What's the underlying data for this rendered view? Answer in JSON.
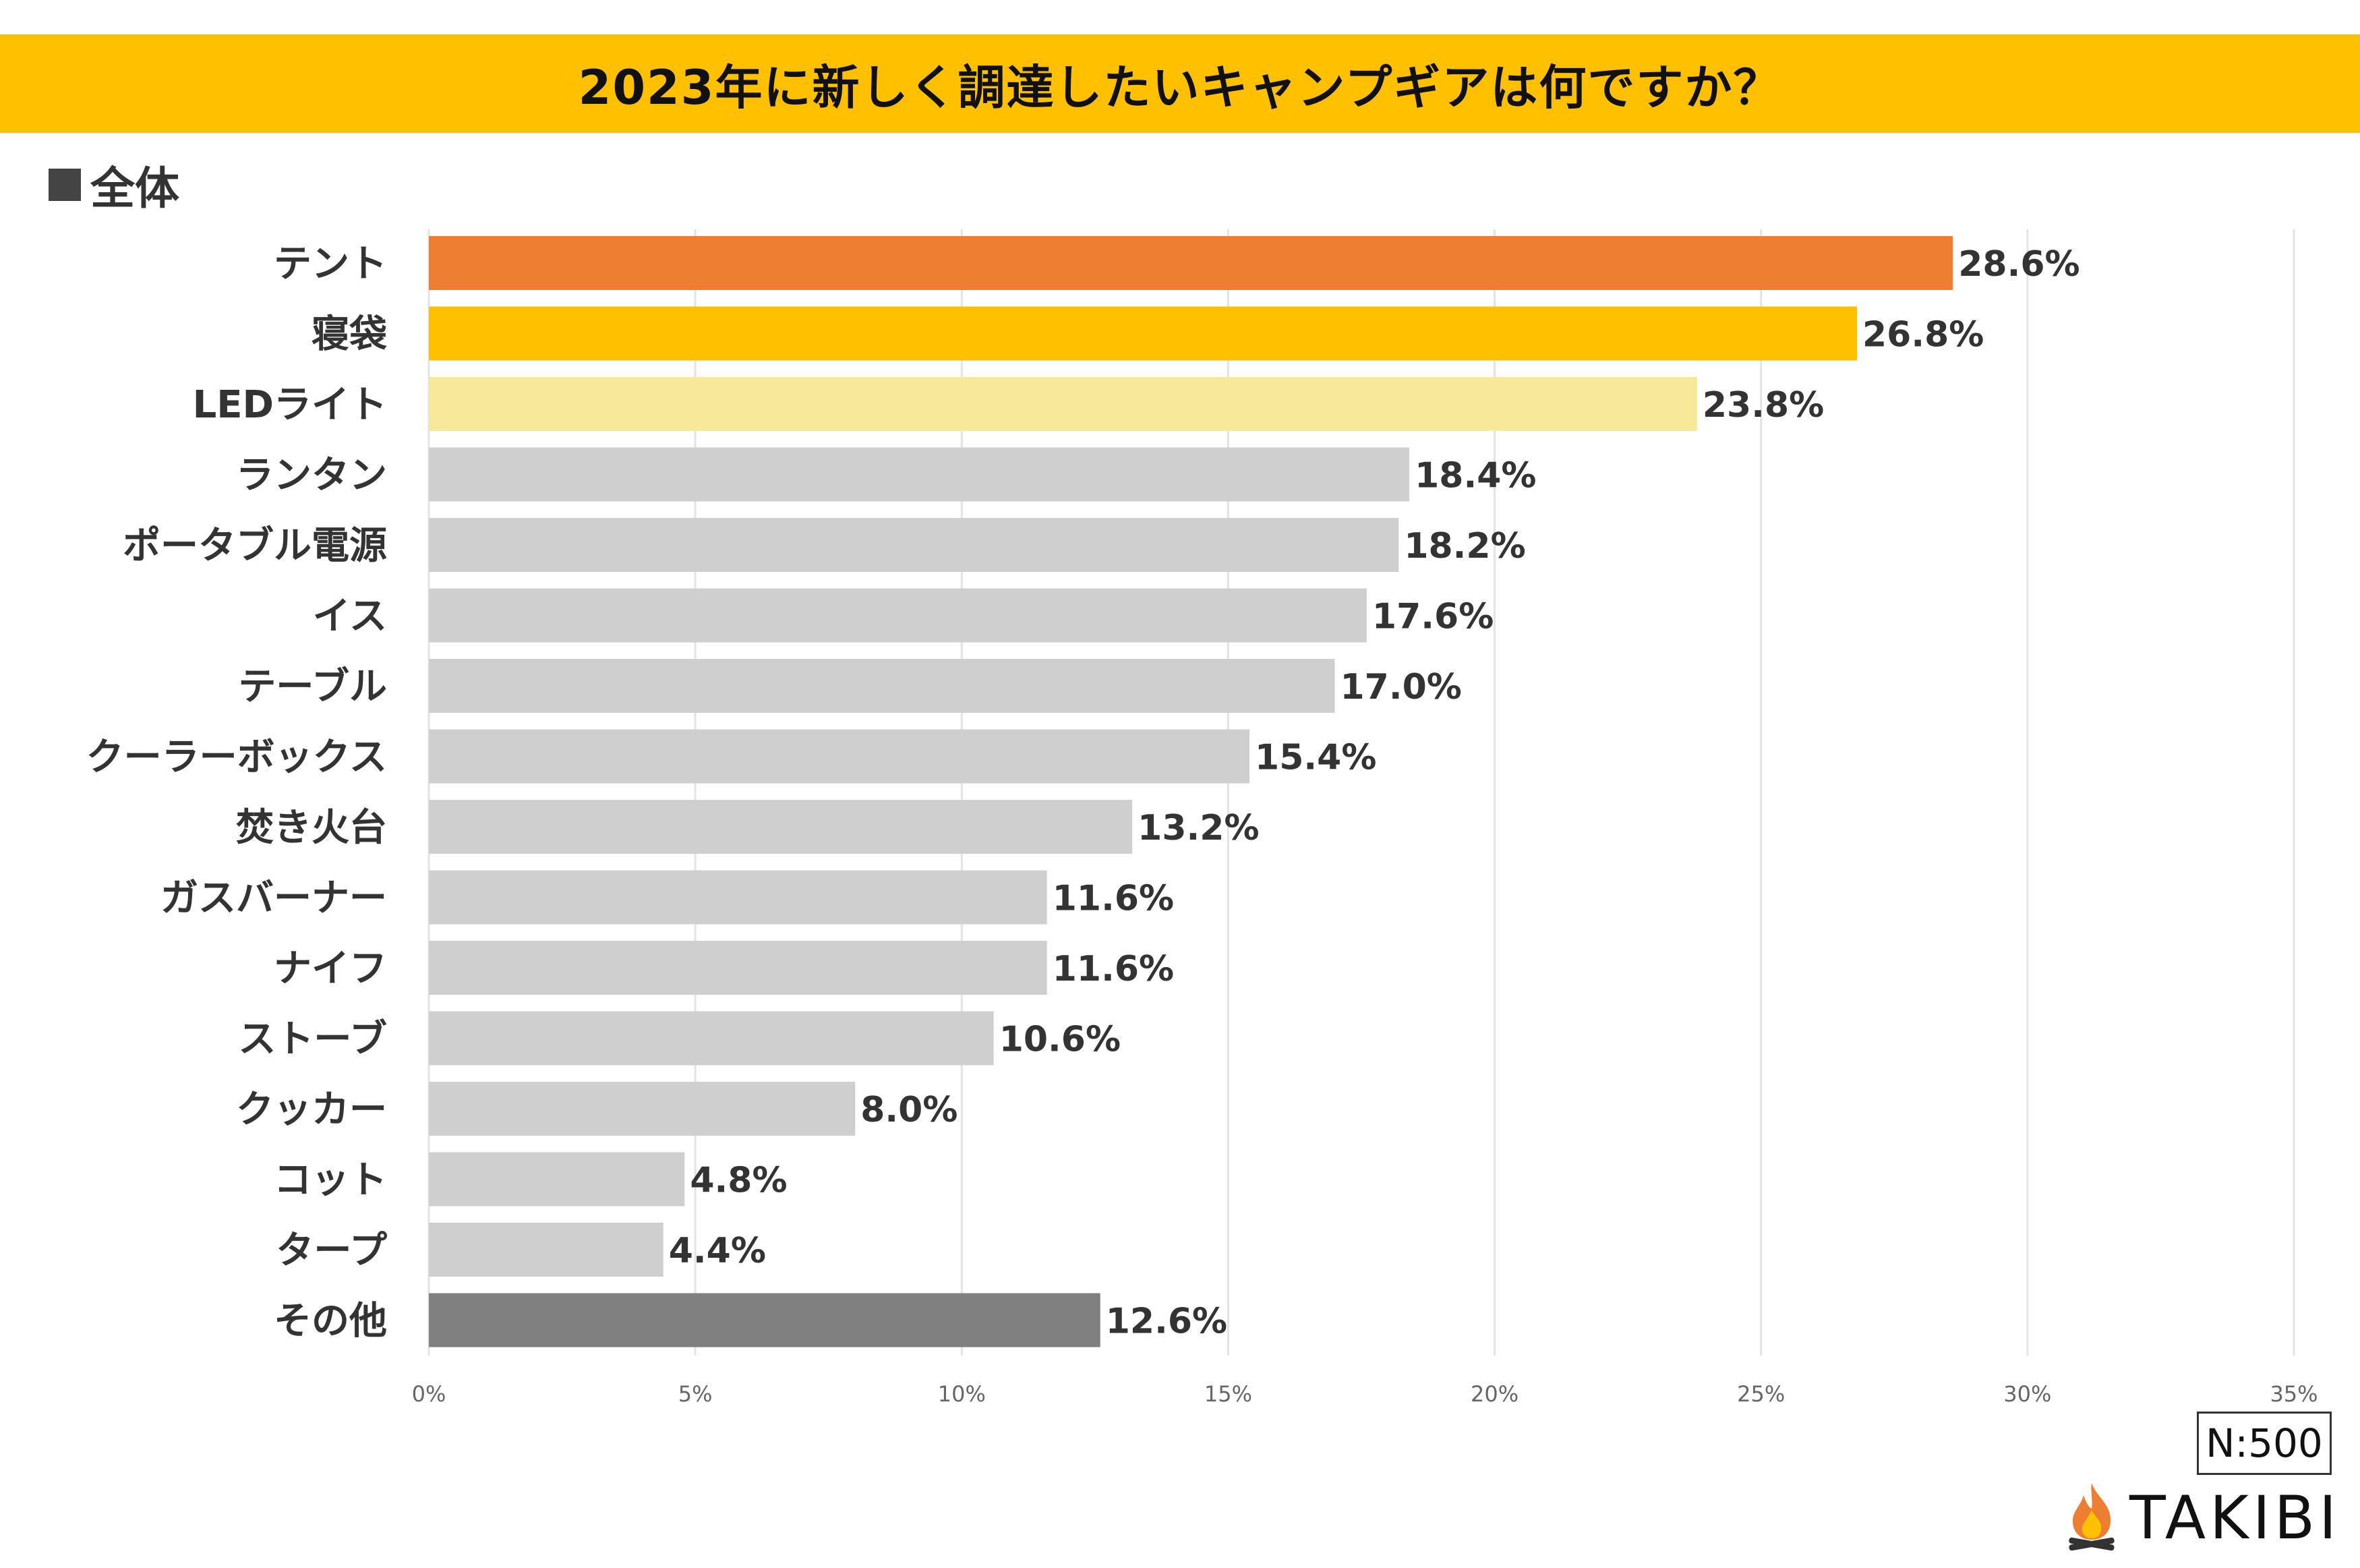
{
  "header": {
    "title": "2023年に新しく調達したいキャンプギアは何ですか？",
    "subtitle": "全体"
  },
  "footer": {
    "sample_size": "N:500",
    "brand": "TAKIBI"
  },
  "colors": {
    "banner": "#FFC000",
    "highlight1": "#ED7D31",
    "highlight2": "#FFC000",
    "highlight3": "#F7E99A",
    "default_bar": "#D0CFCF",
    "other_bar": "#808080",
    "highlight_label": "#ED7D31"
  },
  "chart_data": {
    "type": "bar",
    "orientation": "horizontal",
    "title": "2023年に新しく調達したいキャンプギアは何ですか？",
    "categories": [
      "テント",
      "寝袋",
      "LEDライト",
      "ランタン",
      "ポータブル電源",
      "イス",
      "テーブル",
      "クーラーボックス",
      "焚き火台",
      "ガスバーナー",
      "ナイフ",
      "ストーブ",
      "クッカー",
      "コット",
      "タープ",
      "その他"
    ],
    "values": [
      28.6,
      26.8,
      23.8,
      18.4,
      18.2,
      17.6,
      17.0,
      15.4,
      13.2,
      11.6,
      11.6,
      10.6,
      8.0,
      4.8,
      4.4,
      12.6
    ],
    "value_labels": [
      "28.6%",
      "26.8%",
      "23.8%",
      "18.4%",
      "18.2%",
      "17.6%",
      "17.0%",
      "15.4%",
      "13.2%",
      "11.6%",
      "11.6%",
      "10.6%",
      "8.0%",
      "4.8%",
      "4.4%",
      "12.6%"
    ],
    "bar_colors": [
      "#ED7D31",
      "#FFC000",
      "#F7E99A",
      "#D0CFCF",
      "#D0CFCF",
      "#D0CFCF",
      "#D0CFCF",
      "#D0CFCF",
      "#D0CFCF",
      "#D0CFCF",
      "#D0CFCF",
      "#D0CFCF",
      "#D0CFCF",
      "#D0CFCF",
      "#D0CFCF",
      "#808080"
    ],
    "xlim": [
      0,
      35
    ],
    "xticks": [
      0,
      5,
      10,
      15,
      20,
      25,
      30,
      35
    ],
    "xtick_labels": [
      "0%",
      "5%",
      "10%",
      "15%",
      "20%",
      "25%",
      "30%",
      "35%"
    ],
    "grid": "vertical"
  }
}
